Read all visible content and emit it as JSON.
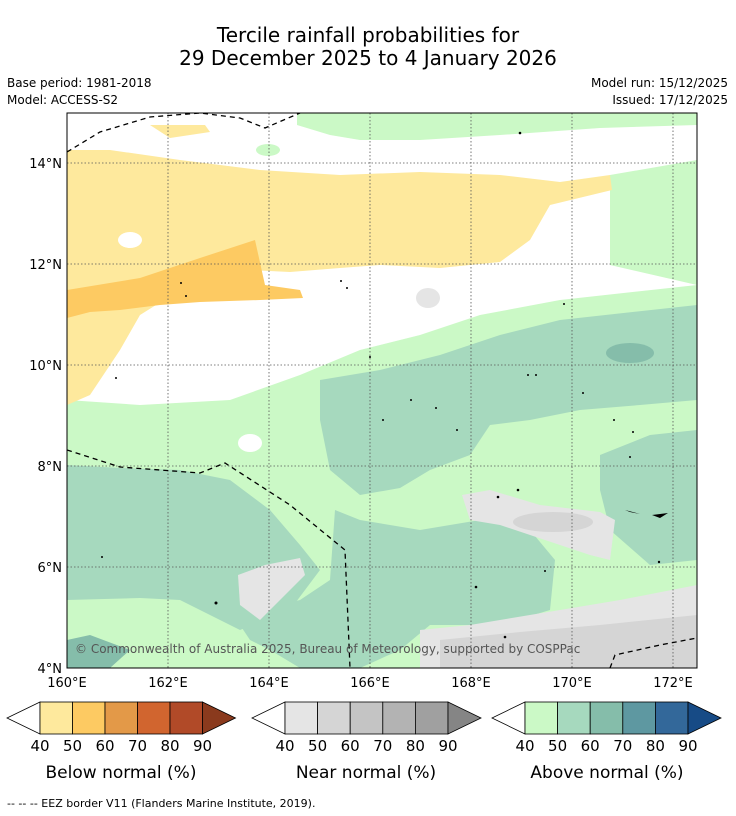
{
  "header": {
    "title_line1": "Tercile rainfall probabilities for",
    "title_line2": "29 December 2025 to 4 January 2026",
    "base_period": "Base period: 1981-2018",
    "model": "Model: ACCESS-S2",
    "model_run": "Model run: 15/12/2025",
    "issued": "Issued: 17/12/2025"
  },
  "map": {
    "lat_labels": [
      "14°N",
      "12°N",
      "10°N",
      "8°N",
      "6°N",
      "4°N"
    ],
    "lon_labels": [
      "160°E",
      "162°E",
      "164°E",
      "166°E",
      "168°E",
      "170°E",
      "172°E"
    ],
    "copyright": "© Commonwealth of Australia 2025, Bureau of Meteorology, supported by COSPPac",
    "colors": {
      "below_40": "#fee99d",
      "below_50": "#fdca62",
      "near_40": "#e5e5e5",
      "near_50": "#d5d5d5",
      "above_40": "#cbf9c6",
      "above_50": "#a6d9be",
      "above_60": "#85bdaa",
      "above_70": "#5e98a1"
    }
  },
  "colorbars": [
    {
      "title": "Below normal (%)",
      "ticks": [
        "40",
        "50",
        "60",
        "70",
        "80",
        "90"
      ],
      "colors": [
        "#fee99d",
        "#fdca62",
        "#e39948",
        "#d1652f",
        "#b14a28",
        "#8a3a1d"
      ]
    },
    {
      "title": "Near normal (%)",
      "ticks": [
        "40",
        "50",
        "60",
        "70",
        "80",
        "90"
      ],
      "colors": [
        "#e5e5e5",
        "#d5d5d5",
        "#c4c4c4",
        "#b3b3b3",
        "#a0a0a0",
        "#858585"
      ]
    },
    {
      "title": "Above normal (%)",
      "ticks": [
        "40",
        "50",
        "60",
        "70",
        "80",
        "90"
      ],
      "colors": [
        "#cbf9c6",
        "#a6d9be",
        "#85bdaa",
        "#5e98a1",
        "#33689a",
        "#174b86"
      ]
    }
  ],
  "footer": "--  --  -- EEZ border V11 (Flanders Marine Institute, 2019)."
}
